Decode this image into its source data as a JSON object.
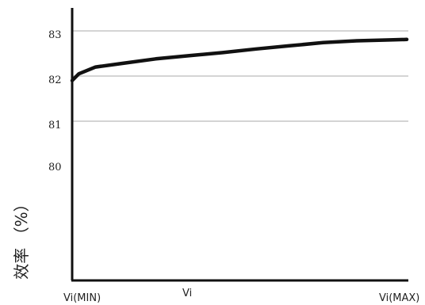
{
  "chart_data": {
    "type": "line",
    "title": "",
    "xlabel": "Vi",
    "ylabel": "效率 （%）",
    "x_tick_labels": {
      "min": "Vi(MIN)",
      "max": "Vi(MAX)"
    },
    "y_ticks": [
      80,
      81,
      82,
      83
    ],
    "y_tick_labels": [
      "80",
      "81",
      "82",
      "83"
    ],
    "gridlines_y": [
      81,
      82,
      83
    ],
    "grid": true,
    "colors": {
      "line": "#111111",
      "grid": "#bbbbbb",
      "axis": "#111111"
    },
    "series": [
      {
        "x": [
          0,
          0.02,
          0.07,
          0.15,
          0.25,
          0.35,
          0.45,
          0.55,
          0.65,
          0.75,
          0.85,
          0.95,
          1.0
        ],
        "values": [
          81.9,
          82.05,
          82.2,
          82.28,
          82.38,
          82.45,
          82.52,
          82.6,
          82.67,
          82.74,
          82.78,
          82.8,
          82.81
        ]
      }
    ]
  }
}
